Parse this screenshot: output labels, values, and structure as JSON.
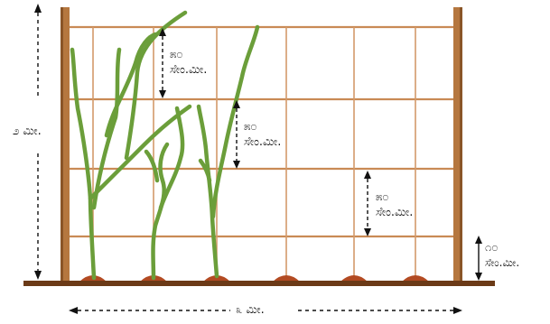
{
  "labels": {
    "height": "೨ ಮೀ.",
    "width": "೩ ಮೀ.",
    "spacing_top_value": "೫೦",
    "spacing_top_unit": "ಸೇಂ.ಮೀ.",
    "spacing_mid_value": "೫೦",
    "spacing_mid_unit": "ಸೇಂ.ಮೀ.",
    "spacing_low_value": "೫೦",
    "spacing_low_unit": "ಸೇಂ.ಮೀ.",
    "ground_gap_value": "೧೦",
    "ground_gap_unit": "ಸೇಂ.ಮೀ."
  },
  "colors": {
    "post": "#b5773f",
    "post_dark": "#8a5527",
    "wire": "#c98a55",
    "ground": "#6b3a17",
    "soil_mound": "#b24a22",
    "plant": "#6b9e3a"
  }
}
